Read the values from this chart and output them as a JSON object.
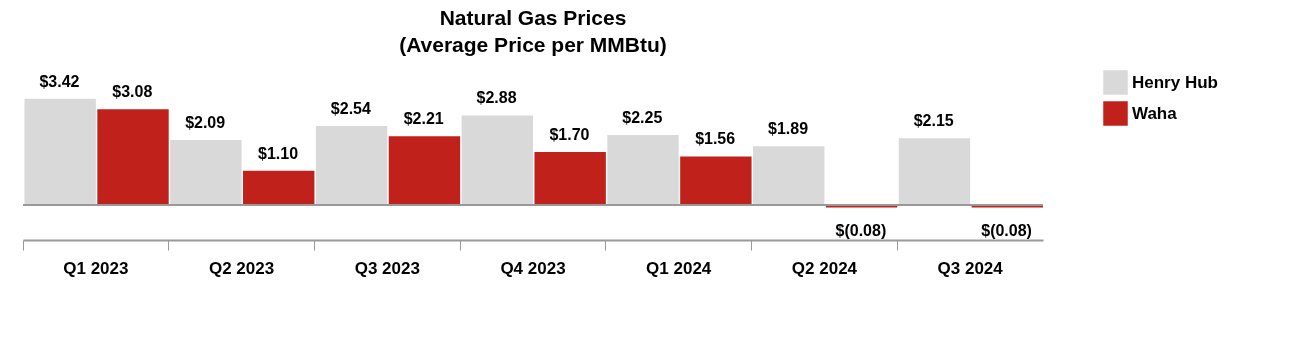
{
  "chart_data": {
    "type": "bar",
    "title": "Natural Gas Prices",
    "subtitle": "(Average Price per MMBtu)",
    "categories": [
      "Q1 2023",
      "Q2 2023",
      "Q3 2023",
      "Q4 2023",
      "Q1 2024",
      "Q2 2024",
      "Q3 2024"
    ],
    "series": [
      {
        "name": "Henry Hub",
        "color": "#d9d9d9",
        "values": [
          3.42,
          2.09,
          2.54,
          2.88,
          2.25,
          1.89,
          2.15
        ],
        "value_labels": [
          "$3.42",
          "$2.09",
          "$2.54",
          "$2.88",
          "$2.25",
          "$1.89",
          "$2.15"
        ]
      },
      {
        "name": "Waha",
        "color": "#c0211a",
        "values": [
          3.08,
          1.1,
          2.21,
          1.7,
          1.56,
          -0.08,
          -0.08
        ],
        "value_labels": [
          "$3.08",
          "$1.10",
          "$2.21",
          "$1.70",
          "$1.56",
          "$(0.08)",
          "$(0.08)"
        ]
      }
    ],
    "legend": "right",
    "grid": false
  }
}
